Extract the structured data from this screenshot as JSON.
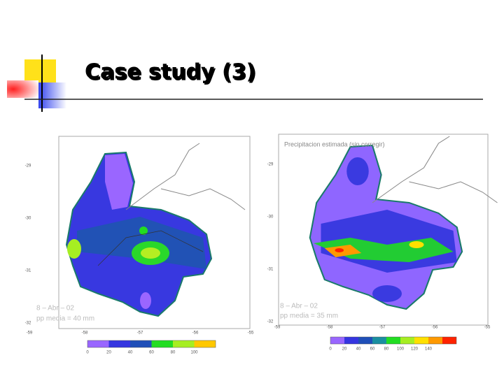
{
  "header": {
    "title": "Case study (3)"
  },
  "maps": [
    {
      "caption_date": "8 – Abr – 02",
      "caption_mean": "pp media = 40 mm",
      "y_labels": [
        "-29",
        "-30",
        "-31",
        "-32"
      ],
      "x_labels": [
        "-59",
        "-58",
        "-57",
        "-56",
        "-55"
      ],
      "colorbar": {
        "labels": [
          "0",
          "20",
          "40",
          "60",
          "80",
          "100"
        ],
        "colors": [
          "#9966ff",
          "#3535e0",
          "#1f4fb8",
          "#22dd22",
          "#a6ee22",
          "#ffc800"
        ]
      }
    },
    {
      "heading": "Precipitacion estimada (sin corregir)",
      "caption_date": "8 – Abr – 02",
      "caption_mean": "pp media = 35 mm",
      "y_labels": [
        "-29",
        "-30",
        "-31",
        "-32"
      ],
      "x_labels": [
        "-59",
        "-58",
        "-57",
        "-56",
        "-55"
      ],
      "colorbar": {
        "labels": [
          "0",
          "20",
          "40",
          "60",
          "80",
          "100",
          "120",
          "140"
        ],
        "colors": [
          "#9966ff",
          "#3535e0",
          "#1f4fb8",
          "#1a8fa0",
          "#22dd22",
          "#a6ee22",
          "#ffe000",
          "#ff9900",
          "#ff2200"
        ]
      }
    }
  ]
}
